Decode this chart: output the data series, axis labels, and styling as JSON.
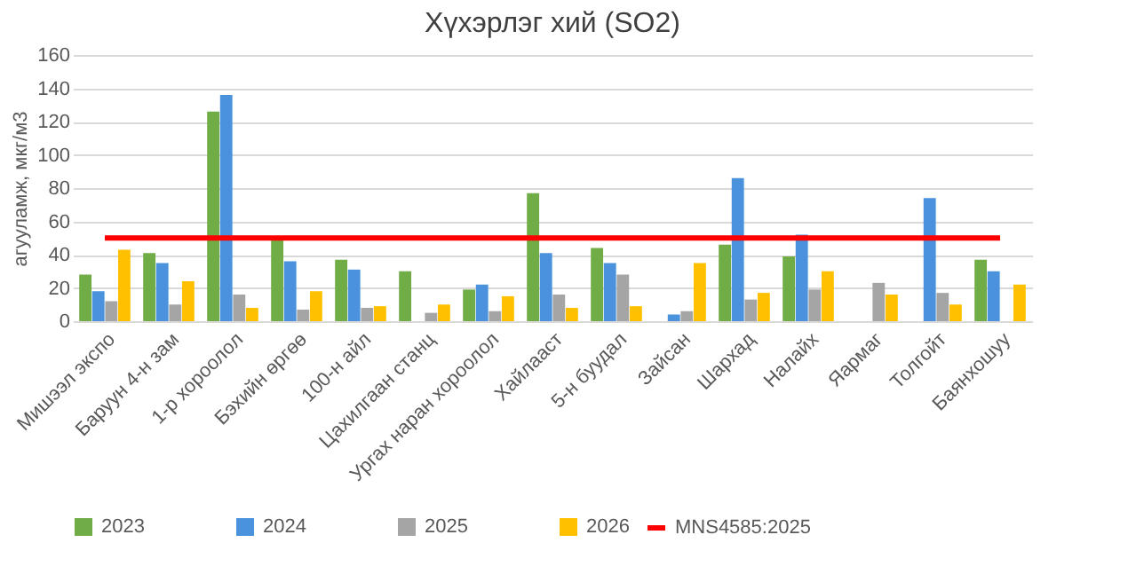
{
  "chart_data": {
    "type": "bar",
    "title": "Хүхэрлэг хий (SO2)",
    "ylabel": "агууламж, мкг/м3",
    "categories": [
      "Мишээл экспо",
      "Баруун 4-н зам",
      "1-р хороолол",
      "Бэхийн өргөө",
      "100-н айл",
      "Цахилгаан станц",
      "Ургах наран хороолол",
      "Хайлааст",
      "5-н буудал",
      "Зайсан",
      "Шархад",
      "Налайх",
      "Яармаг",
      "Толгойт",
      "Баянхошуу"
    ],
    "series": [
      {
        "name": "2023",
        "color": "#70ad47",
        "values": [
          28,
          41,
          126,
          49,
          37,
          30,
          19,
          77,
          44,
          null,
          46,
          39,
          null,
          null,
          37
        ]
      },
      {
        "name": "2024",
        "color": "#4a93dc",
        "values": [
          18,
          35,
          136,
          36,
          31,
          null,
          22,
          41,
          35,
          4,
          86,
          52,
          null,
          74,
          30
        ]
      },
      {
        "name": "2025",
        "color": "#a5a5a5",
        "values": [
          12,
          10,
          16,
          7,
          8,
          5,
          6,
          16,
          28,
          6,
          13,
          19,
          23,
          17,
          null
        ]
      },
      {
        "name": "2026",
        "color": "#ffc000",
        "values": [
          43,
          24,
          8,
          18,
          9,
          10,
          15,
          8,
          9,
          35,
          17,
          30,
          16,
          10,
          22
        ]
      },
      {
        "name": "MNS4585:2025",
        "type": "line",
        "color": "#ff0000",
        "values": [
          50,
          50,
          50,
          50,
          50,
          50,
          50,
          50,
          50,
          50,
          50,
          50,
          50,
          50,
          50
        ]
      }
    ],
    "ylim": [
      0,
      160
    ],
    "yticks": [
      0,
      20,
      40,
      60,
      80,
      100,
      120,
      140,
      160
    ],
    "grid": "y",
    "legend": "bottom"
  }
}
